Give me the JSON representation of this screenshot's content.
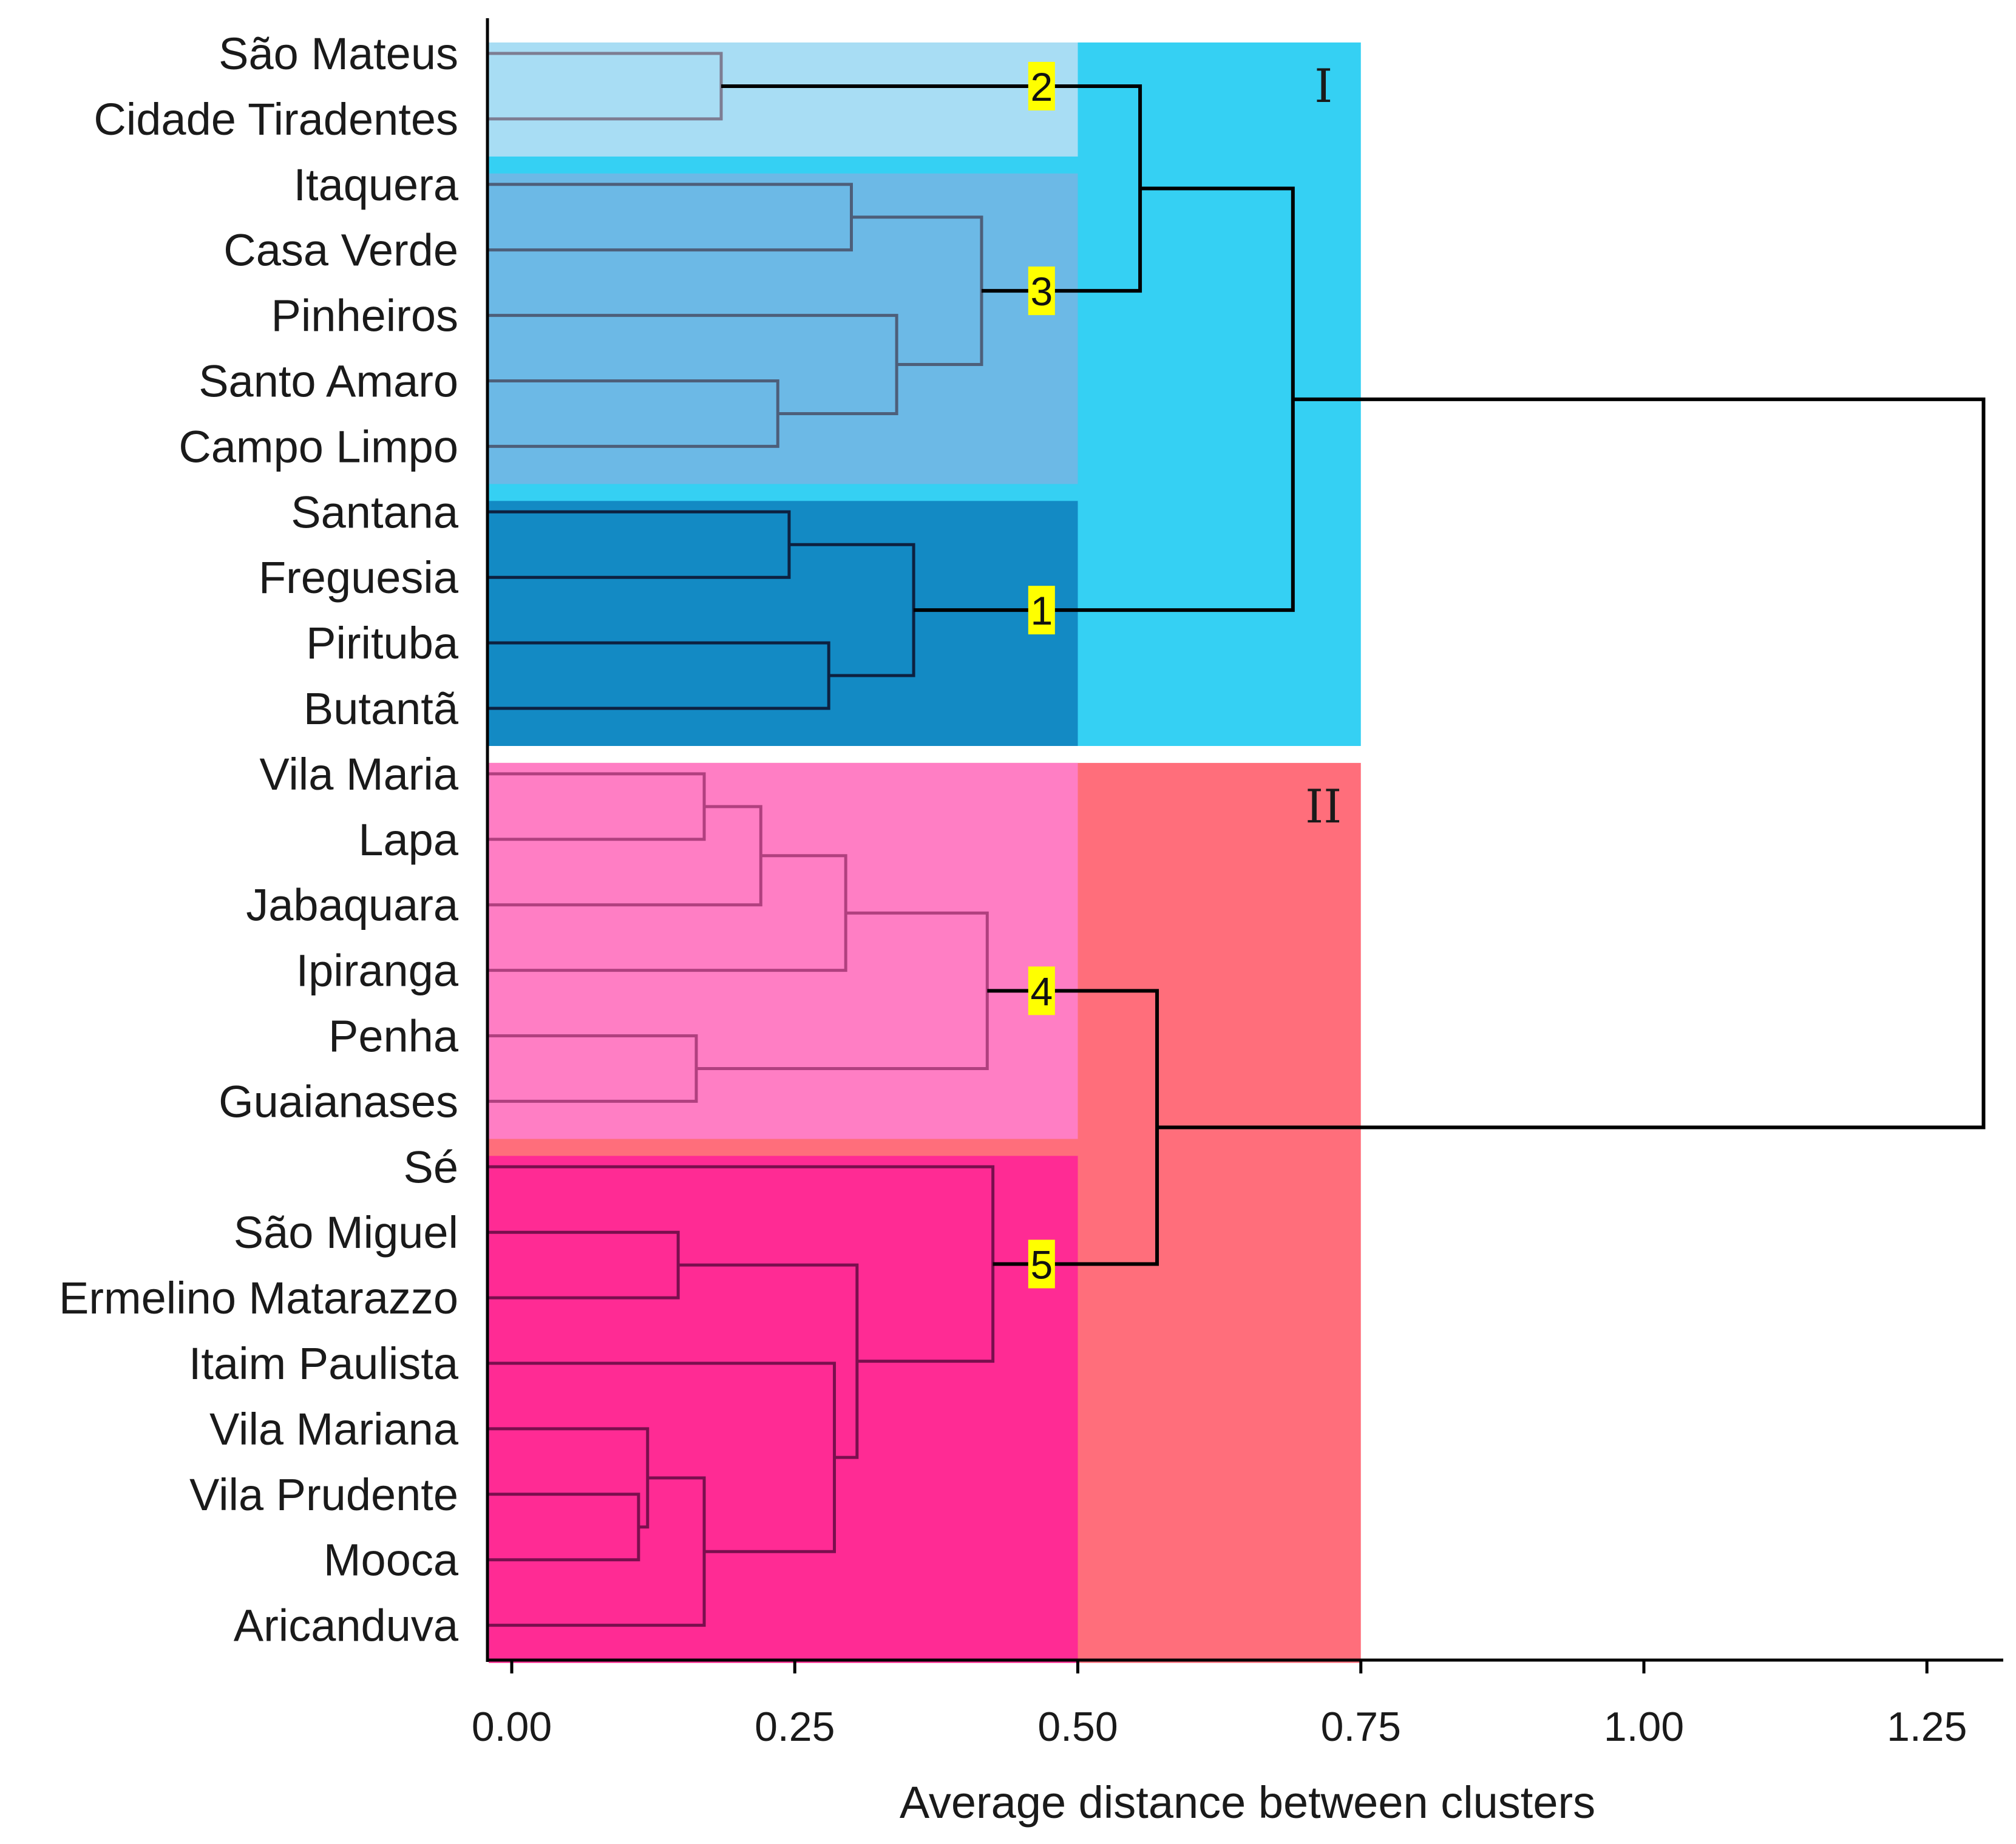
{
  "chart_data": {
    "type": "dendrogram",
    "xlabel": "Average distance between clusters",
    "xlim": [
      -0.05,
      1.31
    ],
    "xticks": [
      "0.00",
      "0.25",
      "0.50",
      "0.75",
      "1.00",
      "1.25"
    ],
    "xtick_values": [
      0,
      0.25,
      0.5,
      0.75,
      1.0,
      1.25
    ],
    "leaves": [
      "São Mateus",
      "Cidade Tiradentes",
      "Itaquera",
      "Casa Verde",
      "Pinheiros",
      "Santo Amaro",
      "Campo Limpo",
      "Santana",
      "Freguesia",
      "Pirituba",
      "Butantã",
      "Vila Maria",
      "Lapa",
      "Jabaquara",
      "Ipiranga",
      "Penha",
      "Guaianases",
      "Sé",
      "São Miguel",
      "Ermelino Matarazzo",
      "Itaim Paulista",
      "Vila Mariana",
      "Vila Prudente",
      "Mooca",
      "Aricanduva"
    ],
    "cut_height": 0.5,
    "group_cut_height": 0.75,
    "groups": [
      {
        "label": "I",
        "first_leaf": 0,
        "last_leaf": 10,
        "color": "#35d0f3"
      },
      {
        "label": "II",
        "first_leaf": 11,
        "last_leaf": 24,
        "color": "#ff6e7b"
      }
    ],
    "clusters": [
      {
        "label": "2",
        "first_leaf": 0,
        "last_leaf": 1,
        "color": "#a8ddf4",
        "line_color": "#7d7d92"
      },
      {
        "label": "3",
        "first_leaf": 2,
        "last_leaf": 6,
        "color": "#6cb9e6",
        "line_color": "#4d5f7a"
      },
      {
        "label": "1",
        "first_leaf": 7,
        "last_leaf": 10,
        "color": "#138ac4",
        "line_color": "#0d2140"
      },
      {
        "label": "4",
        "first_leaf": 11,
        "last_leaf": 16,
        "color": "#ff7ec4",
        "line_color": "#b0407f"
      },
      {
        "label": "5",
        "first_leaf": 17,
        "last_leaf": 24,
        "color": "#ff2b94",
        "line_color": "#7a0f4e"
      }
    ],
    "merges": [
      {
        "a": "L0",
        "b": "L1",
        "h": 0.185,
        "cluster": "2"
      },
      {
        "a": "L2",
        "b": "L3",
        "h": 0.3,
        "cluster": "3"
      },
      {
        "a": "L5",
        "b": "L6",
        "h": 0.235,
        "cluster": "3"
      },
      {
        "a": "L4",
        "b": "M2",
        "h": 0.34,
        "cluster": "3"
      },
      {
        "a": "M1",
        "b": "M3",
        "h": 0.415,
        "cluster": "3"
      },
      {
        "a": "L7",
        "b": "L8",
        "h": 0.245,
        "cluster": "1"
      },
      {
        "a": "L9",
        "b": "L10",
        "h": 0.28,
        "cluster": "1"
      },
      {
        "a": "M5",
        "b": "M6",
        "h": 0.355,
        "cluster": "1"
      },
      {
        "a": "L11",
        "b": "L12",
        "h": 0.17,
        "cluster": "4"
      },
      {
        "a": "M8",
        "b": "L13",
        "h": 0.22,
        "cluster": "4"
      },
      {
        "a": "M9",
        "b": "L14",
        "h": 0.295,
        "cluster": "4"
      },
      {
        "a": "L15",
        "b": "L16",
        "h": 0.163,
        "cluster": "4"
      },
      {
        "a": "M10",
        "b": "M11",
        "h": 0.42,
        "cluster": "4"
      },
      {
        "a": "L18",
        "b": "L19",
        "h": 0.147,
        "cluster": "5"
      },
      {
        "a": "L22",
        "b": "L23",
        "h": 0.112,
        "cluster": "5"
      },
      {
        "a": "L21",
        "b": "M14",
        "h": 0.12,
        "cluster": "5"
      },
      {
        "a": "M15",
        "b": "L24",
        "h": 0.17,
        "cluster": "5"
      },
      {
        "a": "L20",
        "b": "M16",
        "h": 0.285,
        "cluster": "5"
      },
      {
        "a": "M13",
        "b": "M17",
        "h": 0.305,
        "cluster": "5"
      },
      {
        "a": "L17",
        "b": "M18",
        "h": 0.425,
        "cluster": "5"
      },
      {
        "a": "M0",
        "b": "M4",
        "h": 0.555,
        "cluster": "top"
      },
      {
        "a": "M20",
        "b": "M7",
        "h": 0.69,
        "cluster": "top"
      },
      {
        "a": "M12",
        "b": "M19",
        "h": 0.57,
        "cluster": "top"
      },
      {
        "a": "M21",
        "b": "M22",
        "h": 1.3,
        "cluster": "top"
      }
    ],
    "cluster_marker_x": 0.468,
    "top_line_color": "#000000",
    "label_bg_color": "#ffff00"
  }
}
